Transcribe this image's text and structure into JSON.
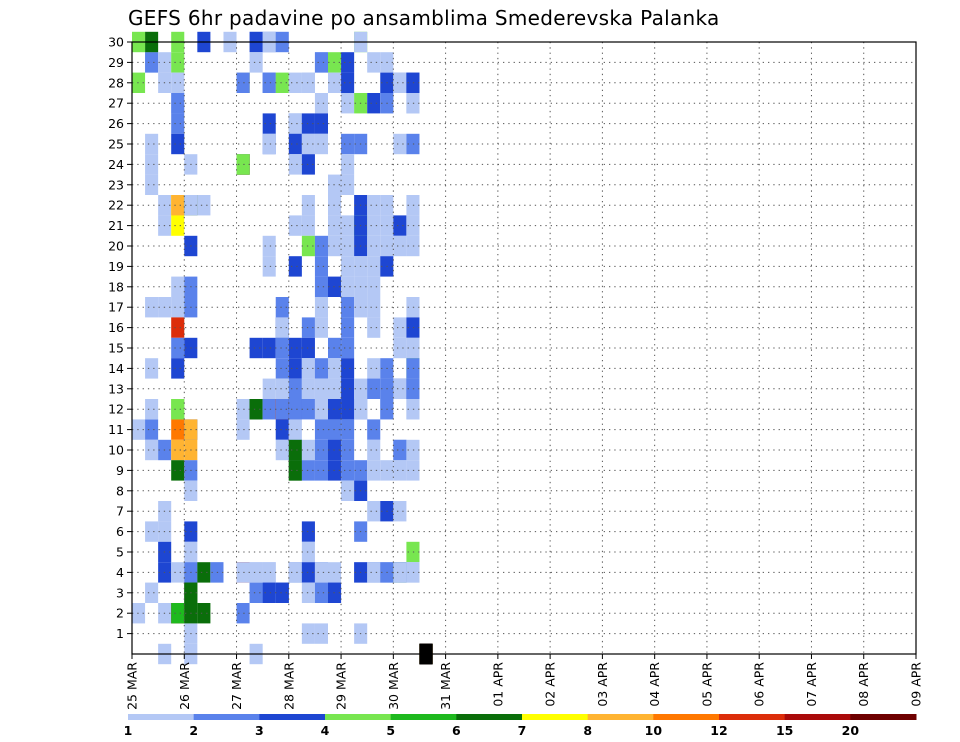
{
  "chart_data": {
    "type": "heatmap",
    "title": "GEFS 6hr padavine po ansamblima Smederevska Palanka",
    "xlabel": "",
    "ylabel": "",
    "x_tick_labels": [
      "25 MAR",
      "26 MAR",
      "27 MAR",
      "28 MAR",
      "29 MAR",
      "30 MAR",
      "31 MAR",
      "01 APR",
      "02 APR",
      "03 APR",
      "04 APR",
      "05 APR",
      "06 APR",
      "07 APR",
      "08 APR",
      "09 APR"
    ],
    "y_tick_labels": [
      "1",
      "2",
      "3",
      "4",
      "5",
      "6",
      "7",
      "8",
      "9",
      "10",
      "11",
      "12",
      "13",
      "14",
      "15",
      "16",
      "17",
      "18",
      "19",
      "20",
      "21",
      "22",
      "23",
      "24",
      "25",
      "26",
      "27",
      "28",
      "29",
      "30"
    ],
    "xlim_days": [
      0,
      15
    ],
    "ylim": [
      0,
      30
    ],
    "grid": true,
    "time_step_hours": 6,
    "legend": {
      "placement": "bottom",
      "labels": [
        "1",
        "2",
        "3",
        "4",
        "5",
        "6",
        "7",
        "8",
        "10",
        "12",
        "15",
        "20"
      ],
      "colors": [
        "#b4c8f5",
        "#5a82eb",
        "#1e46d2",
        "#78e650",
        "#1eb91e",
        "#0a6e0a",
        "#ffff00",
        "#ffb432",
        "#ff7800",
        "#dc2d0a",
        "#aa0a0a",
        "#6e0000"
      ]
    },
    "points": [
      [
        29,
        1,
        0
      ],
      [
        29,
        1,
        1
      ],
      [
        30,
        1,
        5
      ],
      [
        28,
        0,
        3
      ],
      [
        30,
        0,
        3
      ],
      [
        24,
        1,
        0
      ],
      [
        23,
        1,
        0
      ],
      [
        25,
        1,
        0
      ],
      [
        2,
        0,
        0
      ],
      [
        2,
        3,
        0
      ],
      [
        11,
        0,
        0
      ],
      [
        11,
        1,
        1
      ],
      [
        10,
        1,
        0
      ],
      [
        12,
        1,
        0
      ],
      [
        14,
        1,
        0
      ],
      [
        17,
        1,
        0
      ],
      [
        6,
        1,
        0
      ],
      [
        3,
        1,
        0
      ],
      [
        29,
        2,
        0
      ],
      [
        28,
        2,
        0
      ],
      [
        22,
        2,
        0
      ],
      [
        21,
        2,
        0
      ],
      [
        17,
        2,
        0
      ],
      [
        10,
        2,
        1
      ],
      [
        7,
        2,
        0
      ],
      [
        6,
        2,
        0
      ],
      [
        5,
        2,
        2
      ],
      [
        4,
        2,
        2
      ],
      [
        2,
        2,
        0
      ],
      [
        0,
        2,
        0
      ],
      [
        30,
        3,
        3
      ],
      [
        29,
        3,
        3
      ],
      [
        28,
        3,
        0
      ],
      [
        27,
        3,
        0
      ],
      [
        27,
        3,
        1
      ],
      [
        26,
        3,
        1
      ],
      [
        25,
        3,
        2
      ],
      [
        22,
        3,
        6
      ],
      [
        21,
        3,
        6
      ],
      [
        17,
        3,
        0
      ],
      [
        16,
        3,
        9
      ],
      [
        15,
        3,
        1
      ],
      [
        14,
        3,
        2
      ],
      [
        12,
        3,
        3
      ],
      [
        11,
        3,
        8
      ],
      [
        10,
        3,
        7
      ],
      [
        9,
        3,
        5
      ],
      [
        4,
        3,
        0
      ],
      [
        2,
        3,
        10
      ],
      [
        2,
        3,
        4
      ],
      [
        18,
        3,
        0
      ],
      [
        22,
        3,
        7
      ],
      [
        12,
        3,
        3
      ],
      [
        22,
        4,
        0
      ],
      [
        22,
        4,
        7
      ],
      [
        22,
        4,
        5
      ],
      [
        22,
        4,
        0
      ],
      [
        24,
        4,
        0
      ],
      [
        20,
        4,
        2
      ],
      [
        18,
        4,
        1
      ],
      [
        17,
        4,
        1
      ],
      [
        15,
        4,
        2
      ],
      [
        11,
        4,
        2
      ],
      [
        11,
        4,
        7
      ],
      [
        10,
        4,
        7
      ],
      [
        9,
        4,
        1
      ],
      [
        8,
        4,
        0
      ],
      [
        6,
        4,
        2
      ],
      [
        5,
        4,
        0
      ],
      [
        4,
        4,
        0
      ],
      [
        4,
        4,
        1
      ],
      [
        1,
        4,
        0
      ],
      [
        2,
        4,
        5
      ],
      [
        3,
        4,
        5
      ],
      [
        3,
        4,
        5
      ],
      [
        0,
        4,
        0
      ],
      [
        30,
        5,
        2
      ],
      [
        22,
        5,
        0
      ],
      [
        4,
        5,
        5
      ],
      [
        2,
        5,
        5
      ],
      [
        4,
        6,
        0
      ],
      [
        4,
        6,
        1
      ],
      [
        30,
        7,
        0
      ],
      [
        28,
        8,
        1
      ],
      [
        28,
        8,
        5
      ],
      [
        28,
        8,
        6
      ],
      [
        28,
        8,
        0
      ],
      [
        28,
        8,
        1
      ],
      [
        24,
        8,
        0
      ],
      [
        24,
        8,
        1
      ],
      [
        24,
        8,
        3
      ],
      [
        24,
        8,
        5
      ],
      [
        24,
        8,
        6
      ],
      [
        24,
        8,
        10
      ],
      [
        24,
        8,
        5
      ],
      [
        24,
        8,
        0
      ],
      [
        24,
        8,
        3
      ],
      [
        12,
        8,
        0
      ],
      [
        11,
        8,
        0
      ],
      [
        4,
        8,
        10
      ],
      [
        4,
        8,
        0
      ],
      [
        2,
        8,
        1
      ],
      [
        30,
        9,
        0
      ],
      [
        30,
        9,
        2
      ],
      [
        29,
        9,
        0
      ],
      [
        15,
        9,
        2
      ],
      [
        12,
        9,
        1
      ],
      [
        12,
        9,
        5
      ],
      [
        12,
        9,
        5
      ],
      [
        4,
        9,
        0
      ],
      [
        3,
        9,
        0
      ],
      [
        3,
        9,
        1
      ],
      [
        4,
        9,
        0
      ],
      [
        0,
        9,
        0
      ],
      [
        30,
        10,
        1
      ],
      [
        30,
        10,
        0
      ],
      [
        28,
        10,
        0
      ],
      [
        28,
        10,
        1
      ],
      [
        28,
        10,
        1
      ],
      [
        26,
        10,
        2
      ],
      [
        25,
        10,
        1
      ],
      [
        25,
        10,
        0
      ],
      [
        20,
        10,
        0
      ],
      [
        19,
        10,
        0
      ],
      [
        15,
        10,
        2
      ],
      [
        13,
        10,
        0
      ],
      [
        12,
        10,
        0
      ],
      [
        12,
        10,
        1
      ],
      [
        4,
        10,
        0
      ],
      [
        4,
        10,
        0
      ],
      [
        3,
        10,
        1
      ],
      [
        3,
        10,
        2
      ],
      [
        30,
        11,
        1
      ],
      [
        28,
        11,
        3
      ],
      [
        17,
        11,
        1
      ],
      [
        16,
        11,
        2
      ],
      [
        16,
        11,
        0
      ],
      [
        15,
        11,
        1
      ],
      [
        14,
        11,
        1
      ],
      [
        13,
        11,
        0
      ],
      [
        12,
        11,
        7
      ],
      [
        12,
        11,
        8
      ],
      [
        12,
        11,
        9
      ],
      [
        12,
        11,
        1
      ],
      [
        11,
        11,
        2
      ],
      [
        10,
        11,
        0
      ],
      [
        3,
        11,
        0
      ],
      [
        3,
        11,
        1
      ],
      [
        3,
        11,
        2
      ],
      [
        28,
        12,
        0
      ],
      [
        26,
        12,
        1
      ],
      [
        26,
        12,
        0
      ],
      [
        25,
        12,
        2
      ],
      [
        24,
        12,
        0
      ],
      [
        21,
        12,
        0
      ],
      [
        19,
        12,
        2
      ],
      [
        15,
        12,
        2
      ],
      [
        14,
        12,
        2
      ],
      [
        13,
        12,
        1
      ],
      [
        12,
        12,
        2
      ],
      [
        12,
        12,
        1
      ],
      [
        11,
        12,
        0
      ],
      [
        10,
        12,
        1
      ],
      [
        10,
        12,
        5
      ],
      [
        9,
        12,
        5
      ],
      [
        9,
        12,
        5
      ],
      [
        4,
        12,
        1
      ],
      [
        4,
        12,
        0
      ],
      [
        4,
        12,
        0
      ],
      [
        28,
        13,
        0
      ],
      [
        28,
        13,
        0
      ],
      [
        26,
        13,
        2
      ],
      [
        25,
        13,
        0
      ],
      [
        24,
        13,
        2
      ],
      [
        22,
        13,
        0
      ],
      [
        21,
        13,
        0
      ],
      [
        20,
        13,
        3
      ],
      [
        16,
        13,
        1
      ],
      [
        15,
        13,
        2
      ],
      [
        14,
        13,
        0
      ],
      [
        14,
        13,
        0
      ],
      [
        13,
        13,
        0
      ],
      [
        12,
        13,
        1
      ],
      [
        10,
        13,
        0
      ],
      [
        9,
        13,
        1
      ],
      [
        6,
        13,
        2
      ],
      [
        5,
        13,
        0
      ],
      [
        4,
        13,
        2
      ],
      [
        3,
        13,
        0
      ],
      [
        1,
        13,
        0
      ],
      [
        29,
        14,
        0
      ],
      [
        29,
        14,
        1
      ],
      [
        27,
        14,
        0
      ],
      [
        26,
        14,
        2
      ],
      [
        25,
        14,
        0
      ],
      [
        20,
        14,
        1
      ],
      [
        19,
        14,
        1
      ],
      [
        18,
        14,
        1
      ],
      [
        17,
        14,
        0
      ],
      [
        16,
        14,
        0
      ],
      [
        14,
        14,
        1
      ],
      [
        13,
        14,
        0
      ],
      [
        12,
        14,
        0
      ],
      [
        11,
        14,
        1
      ],
      [
        10,
        14,
        1
      ],
      [
        9,
        14,
        1
      ],
      [
        4,
        14,
        1
      ],
      [
        4,
        14,
        0
      ],
      [
        3,
        14,
        1
      ],
      [
        1,
        14,
        0
      ],
      [
        29,
        15,
        3
      ],
      [
        28,
        15,
        0
      ],
      [
        23,
        15,
        0
      ],
      [
        22,
        15,
        0
      ],
      [
        21,
        15,
        0
      ],
      [
        20,
        15,
        0
      ],
      [
        18,
        15,
        2
      ],
      [
        15,
        15,
        1
      ],
      [
        14,
        15,
        0
      ],
      [
        14,
        15,
        0
      ],
      [
        13,
        15,
        0
      ],
      [
        12,
        15,
        0
      ],
      [
        12,
        15,
        2
      ],
      [
        11,
        15,
        2
      ],
      [
        11,
        15,
        1
      ],
      [
        10,
        15,
        2
      ],
      [
        9,
        15,
        2
      ],
      [
        4,
        15,
        0
      ],
      [
        3,
        15,
        1
      ],
      [
        3,
        15,
        2
      ],
      [
        29,
        16,
        2
      ],
      [
        28,
        16,
        2
      ],
      [
        27,
        16,
        0
      ],
      [
        25,
        16,
        1
      ],
      [
        24,
        16,
        0
      ],
      [
        23,
        16,
        0
      ],
      [
        21,
        16,
        0
      ],
      [
        20,
        16,
        0
      ],
      [
        19,
        16,
        0
      ],
      [
        18,
        16,
        0
      ],
      [
        17,
        16,
        1
      ],
      [
        16,
        16,
        1
      ],
      [
        15,
        16,
        1
      ],
      [
        14,
        16,
        2
      ],
      [
        13,
        16,
        2
      ],
      [
        12,
        16,
        2
      ],
      [
        11,
        16,
        1
      ],
      [
        10,
        16,
        1
      ],
      [
        9,
        16,
        1
      ],
      [
        8,
        16,
        0
      ],
      [
        30,
        17,
        3
      ],
      [
        30,
        17,
        0
      ],
      [
        27,
        17,
        3
      ],
      [
        25,
        17,
        1
      ],
      [
        22,
        17,
        2
      ],
      [
        21,
        17,
        3
      ],
      [
        21,
        17,
        2
      ],
      [
        20,
        17,
        2
      ],
      [
        19,
        17,
        0
      ],
      [
        18,
        17,
        0
      ],
      [
        17,
        17,
        0
      ],
      [
        13,
        17,
        0
      ],
      [
        12,
        17,
        1
      ],
      [
        12,
        17,
        0
      ],
      [
        9,
        17,
        1
      ],
      [
        8,
        17,
        2
      ],
      [
        6,
        17,
        1
      ],
      [
        4,
        17,
        0
      ],
      [
        4,
        17,
        2
      ],
      [
        1,
        17,
        0
      ],
      [
        29,
        18,
        0
      ],
      [
        27,
        18,
        2
      ],
      [
        22,
        18,
        0
      ],
      [
        21,
        18,
        0
      ],
      [
        20,
        18,
        0
      ],
      [
        19,
        18,
        0
      ],
      [
        18,
        18,
        0
      ],
      [
        17,
        18,
        0
      ],
      [
        16,
        18,
        0
      ],
      [
        14,
        18,
        0
      ],
      [
        13,
        18,
        0
      ],
      [
        13,
        18,
        1
      ],
      [
        11,
        18,
        1
      ],
      [
        10,
        18,
        0
      ],
      [
        9,
        18,
        0
      ],
      [
        7,
        18,
        0
      ],
      [
        4,
        18,
        1
      ],
      [
        4,
        18,
        0
      ],
      [
        29,
        19,
        0
      ],
      [
        28,
        19,
        2
      ],
      [
        27,
        19,
        0
      ],
      [
        27,
        19,
        1
      ],
      [
        22,
        19,
        0
      ],
      [
        21,
        19,
        0
      ],
      [
        20,
        19,
        0
      ],
      [
        19,
        19,
        2
      ],
      [
        14,
        19,
        1
      ],
      [
        13,
        19,
        0
      ],
      [
        13,
        19,
        1
      ],
      [
        12,
        19,
        0
      ],
      [
        12,
        19,
        1
      ],
      [
        9,
        19,
        0
      ],
      [
        7,
        19,
        2
      ],
      [
        4,
        19,
        0
      ],
      [
        4,
        19,
        0
      ],
      [
        4,
        19,
        1
      ],
      [
        28,
        20,
        1
      ],
      [
        28,
        20,
        0
      ],
      [
        28,
        20,
        0
      ],
      [
        25,
        20,
        0
      ],
      [
        21,
        20,
        2
      ],
      [
        20,
        20,
        0
      ],
      [
        16,
        20,
        0
      ],
      [
        15,
        20,
        0
      ],
      [
        13,
        20,
        2
      ],
      [
        13,
        20,
        0
      ],
      [
        10,
        20,
        0
      ],
      [
        10,
        20,
        0
      ],
      [
        10,
        20,
        1
      ],
      [
        9,
        20,
        0
      ],
      [
        7,
        20,
        0
      ],
      [
        4,
        20,
        3
      ],
      [
        4,
        20,
        2
      ],
      [
        4,
        20,
        0
      ],
      [
        28,
        21,
        1
      ],
      [
        28,
        21,
        2
      ],
      [
        27,
        21,
        0
      ],
      [
        27,
        21,
        0
      ],
      [
        25,
        21,
        1
      ],
      [
        22,
        21,
        0
      ],
      [
        21,
        21,
        0
      ],
      [
        20,
        21,
        0
      ],
      [
        17,
        21,
        0
      ],
      [
        16,
        21,
        2
      ],
      [
        15,
        21,
        0
      ],
      [
        14,
        21,
        0
      ],
      [
        14,
        21,
        3
      ],
      [
        14,
        21,
        1
      ],
      [
        13,
        21,
        1
      ],
      [
        12,
        21,
        0
      ],
      [
        12,
        21,
        0
      ],
      [
        10,
        21,
        0
      ],
      [
        9,
        21,
        0
      ],
      [
        5,
        21,
        3
      ],
      [
        4,
        21,
        0
      ],
      [
        4,
        21,
        0
      ],
      [
        0,
        22,
        0
      ],
      [
        0,
        22,
        1
      ],
      [
        0,
        22,
        2
      ],
      [
        0,
        22,
        3
      ],
      [
        0,
        22,
        4
      ],
      [
        0,
        22,
        5
      ],
      [
        0,
        22,
        6
      ],
      [
        0,
        22,
        7
      ],
      [
        0,
        22,
        8
      ],
      [
        0,
        22,
        9
      ],
      [
        0,
        22,
        10
      ],
      [
        0,
        22,
        11
      ],
      [
        0,
        22,
        12
      ],
      [
        0,
        22,
        13
      ],
      [
        0,
        22,
        14
      ],
      [
        0,
        22,
        15
      ],
      [
        0,
        22,
        16
      ],
      [
        0,
        22,
        17
      ]
    ]
  }
}
